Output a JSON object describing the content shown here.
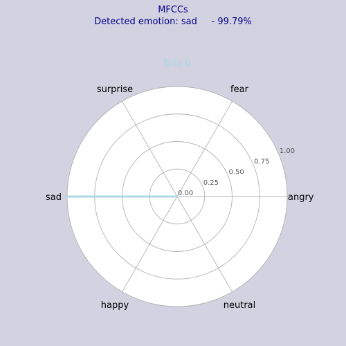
{
  "header": {
    "line1": "MFCCs",
    "line2": "Detected emotion: sad     - 99.79%"
  },
  "chart_data": {
    "type": "radar",
    "title": "BIG 6",
    "categories": [
      "angry",
      "fear",
      "surprise",
      "sad",
      "happy",
      "neutral"
    ],
    "series": [
      {
        "values": [
          0,
          0,
          0,
          0.9979,
          0,
          0
        ]
      }
    ],
    "rlim": [
      0,
      1
    ],
    "rticks": [
      0.0,
      0.25,
      0.5,
      0.75,
      1.0
    ],
    "rtick_labels": [
      "0.00",
      "0.25",
      "0.50",
      "0.75",
      "1.00"
    ],
    "grid": true,
    "colors": {
      "series": "#add8e6",
      "fill": "#e6f3f5",
      "title": "#add8e6",
      "grid": "#b0b0b0",
      "tick_label": "#555555",
      "background": "#d3d2e1",
      "axes_background": "#ffffff"
    }
  }
}
